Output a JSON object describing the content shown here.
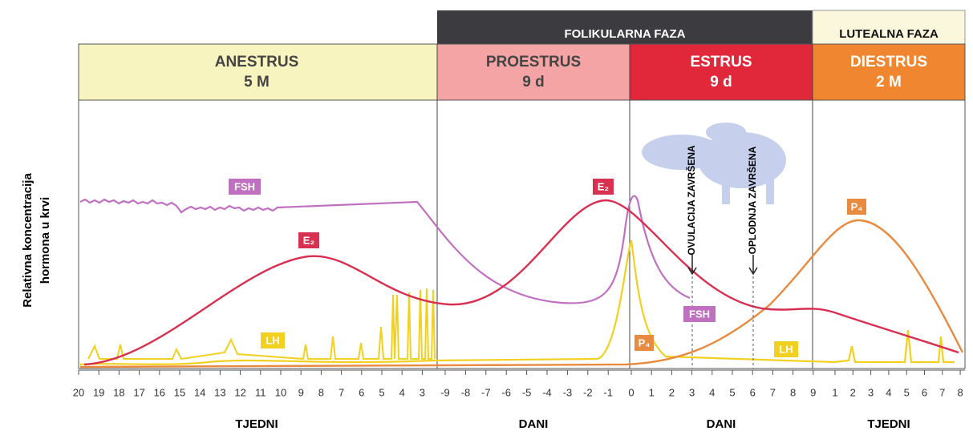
{
  "y_axis_label": [
    "Relativna koncentracija",
    "hormona u krvi"
  ],
  "phase_groups": [
    "FOLIKULARNA FAZA",
    "LUTEALNA FAZA"
  ],
  "stages": [
    {
      "name": "ANESTRUS",
      "duration": "5 M"
    },
    {
      "name": "PROESTRUS",
      "duration": "9 d"
    },
    {
      "name": "ESTRUS",
      "duration": "9 d"
    },
    {
      "name": "DIESTRUS",
      "duration": "2 M"
    }
  ],
  "curve_labels": {
    "fsh_1": "FSH",
    "e2_1": "E₂",
    "lh_1": "LH",
    "e2_2": "E₂",
    "fsh_2": "FSH",
    "p4_1": "P₄",
    "lh_2": "LH",
    "p4_2": "P₄"
  },
  "annotations": [
    "OVULACIJA ZAVRŠENA",
    "OPLODNJA ZAVRŠENA"
  ],
  "x_ticks": [
    [
      20,
      19,
      18,
      17,
      16,
      15,
      14,
      13,
      12,
      11,
      10,
      9,
      8,
      7,
      6,
      5,
      4,
      3
    ],
    [
      -9,
      -8,
      -7,
      -6,
      -5,
      -4,
      -3,
      -2,
      -1
    ],
    [
      0,
      1,
      2,
      3,
      4,
      5,
      6,
      7,
      8,
      9
    ],
    [
      1,
      2,
      3,
      4,
      5,
      6,
      7,
      8
    ]
  ],
  "units": [
    "TJEDNI",
    "DANI",
    "DANI",
    "TJEDNI"
  ]
}
